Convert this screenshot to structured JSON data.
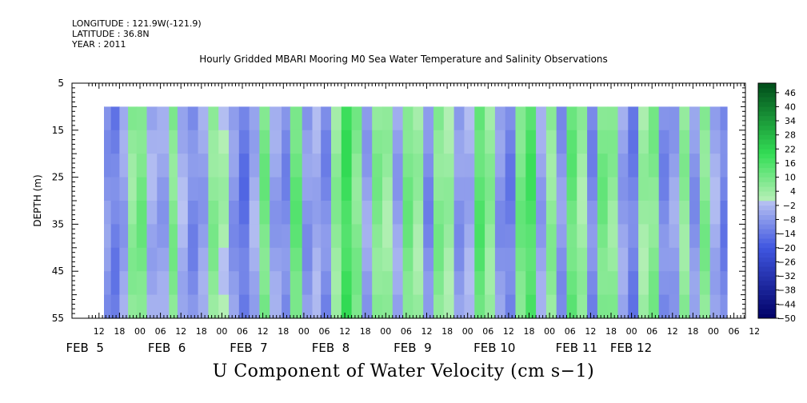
{
  "meta": {
    "longitude": "LONGITUDE : 121.9W(-121.9)",
    "latitude": "LATITUDE : 36.8N",
    "year": "YEAR : 2011"
  },
  "chart_data": {
    "type": "heatmap",
    "title": "Hourly Gridded MBARI Mooring M0 Sea Water Temperature and Salinity Observations",
    "xlabel": "U Component of Water Velocity (cm s−1)",
    "ylabel": "DEPTH (m)",
    "ylim": [
      5,
      55
    ],
    "y_inverted": true,
    "y_ticks": [
      5,
      15,
      25,
      35,
      45,
      55
    ],
    "data_depth_range": [
      10,
      55
    ],
    "x_hour_range": [
      0,
      212
    ],
    "x_tick_hours": [
      12,
      18,
      24,
      30,
      36,
      42,
      48,
      54,
      60,
      66,
      72,
      78,
      84,
      90,
      96,
      102,
      108,
      114,
      120,
      126,
      132,
      138,
      144,
      150,
      156,
      162,
      168,
      174,
      180,
      186,
      192,
      198,
      204
    ],
    "x_tick_labels": [
      "12",
      "18",
      "00",
      "06",
      "12",
      "18",
      "00",
      "06",
      "12",
      "18",
      "00",
      "06",
      "12",
      "18",
      "00",
      "06",
      "12",
      "18",
      "00",
      "06",
      "12",
      "18",
      "00",
      "06",
      "12",
      "18",
      "00",
      "06",
      "12",
      "18",
      "00",
      "06",
      "12"
    ],
    "x_tick_sparse_start": 0,
    "date_labels": [
      {
        "text": "FEB  5",
        "hour": 6
      },
      {
        "text": "FEB  6",
        "hour": 30
      },
      {
        "text": "FEB  7",
        "hour": 54
      },
      {
        "text": "FEB  8",
        "hour": 78
      },
      {
        "text": "FEB  9",
        "hour": 102
      },
      {
        "text": "FEB 10",
        "hour": 126
      },
      {
        "text": "FEB 11",
        "hour": 150
      },
      {
        "text": "FEB 12",
        "hour": 166
      }
    ],
    "colorbar_levels": [
      -50,
      -48,
      -46,
      -44,
      -42,
      -40,
      -38,
      -36,
      -34,
      -32,
      -30,
      -28,
      -26,
      -24,
      -22,
      -20,
      -18,
      -16,
      -14,
      -12,
      -10,
      -8,
      -6,
      -4,
      -2,
      0,
      2,
      4,
      6,
      8,
      10,
      12,
      14,
      16,
      18,
      20,
      22,
      24,
      26,
      28,
      30,
      32,
      34,
      36,
      38,
      40,
      42,
      44,
      46,
      48,
      50
    ],
    "colorbar_labels": [
      "46",
      "40",
      "34",
      "28",
      "22",
      "16",
      "10",
      "4",
      "−2",
      "−8",
      "−14",
      "−20",
      "−26",
      "−32",
      "−38",
      "−44",
      "−50"
    ],
    "colorbar_label_values": [
      46,
      40,
      34,
      28,
      22,
      16,
      10,
      4,
      -2,
      -8,
      -14,
      -20,
      -26,
      -32,
      -38,
      -44,
      -50
    ],
    "colors": {
      "neg_deep": "#000066",
      "neg_mid": "#3f56e0",
      "neg_light": "#b9c3f2",
      "pos_light": "#b8f0b8",
      "pos_mid": "#33dd55",
      "pos_deep": "#004d1a"
    },
    "bands": [
      {
        "h": 0.0,
        "v": -6
      },
      {
        "h": 3.0,
        "v": 3
      },
      {
        "h": 6.0,
        "v": -8
      },
      {
        "h": 9.5,
        "v": -12
      },
      {
        "h": 12.0,
        "v": -6
      },
      {
        "h": 14.5,
        "v": 6
      },
      {
        "h": 17.0,
        "v": 10
      },
      {
        "h": 20.0,
        "v": -4
      },
      {
        "h": 23.0,
        "v": -6
      },
      {
        "h": 26.5,
        "v": 8
      },
      {
        "h": 29.0,
        "v": -3
      },
      {
        "h": 32.0,
        "v": -10
      },
      {
        "h": 35.0,
        "v": -6
      },
      {
        "h": 38.0,
        "v": 7
      },
      {
        "h": 41.0,
        "v": 2
      },
      {
        "h": 44.0,
        "v": -8
      },
      {
        "h": 47.0,
        "v": -14
      },
      {
        "h": 50.0,
        "v": -4
      },
      {
        "h": 53.0,
        "v": 10
      },
      {
        "h": 56.0,
        "v": -6
      },
      {
        "h": 59.5,
        "v": -10
      },
      {
        "h": 62.0,
        "v": 12
      },
      {
        "h": 65.5,
        "v": -8
      },
      {
        "h": 68.5,
        "v": -4
      },
      {
        "h": 71.0,
        "v": -10
      },
      {
        "h": 74.0,
        "v": 6
      },
      {
        "h": 77.0,
        "v": 18
      },
      {
        "h": 80.0,
        "v": 8
      },
      {
        "h": 83.0,
        "v": -6
      },
      {
        "h": 86.0,
        "v": 8
      },
      {
        "h": 89.0,
        "v": 4
      },
      {
        "h": 92.0,
        "v": -6
      },
      {
        "h": 95.0,
        "v": 10
      },
      {
        "h": 98.0,
        "v": 4
      },
      {
        "h": 101.0,
        "v": -10
      },
      {
        "h": 104.0,
        "v": 8
      },
      {
        "h": 107.0,
        "v": 4
      },
      {
        "h": 110.0,
        "v": -8
      },
      {
        "h": 113.0,
        "v": -4
      },
      {
        "h": 116.0,
        "v": 14
      },
      {
        "h": 119.0,
        "v": 6
      },
      {
        "h": 122.0,
        "v": -8
      },
      {
        "h": 125.0,
        "v": -12
      },
      {
        "h": 128.0,
        "v": 10
      },
      {
        "h": 131.0,
        "v": 16
      },
      {
        "h": 134.0,
        "v": -6
      },
      {
        "h": 137.0,
        "v": 6
      },
      {
        "h": 140.0,
        "v": -8
      },
      {
        "h": 143.0,
        "v": 12
      },
      {
        "h": 146.0,
        "v": 4
      },
      {
        "h": 149.0,
        "v": -10
      },
      {
        "h": 152.0,
        "v": 10
      },
      {
        "h": 155.0,
        "v": 6
      },
      {
        "h": 158.0,
        "v": -6
      },
      {
        "h": 161.0,
        "v": -12
      },
      {
        "h": 164.0,
        "v": 4
      },
      {
        "h": 167.0,
        "v": 8
      },
      {
        "h": 170.0,
        "v": -10
      },
      {
        "h": 173.0,
        "v": -6
      },
      {
        "h": 176.0,
        "v": 6
      },
      {
        "h": 179.0,
        "v": -8
      },
      {
        "h": 182.0,
        "v": 8
      },
      {
        "h": 185.0,
        "v": -4
      },
      {
        "h": 188.0,
        "v": -12
      }
    ]
  }
}
